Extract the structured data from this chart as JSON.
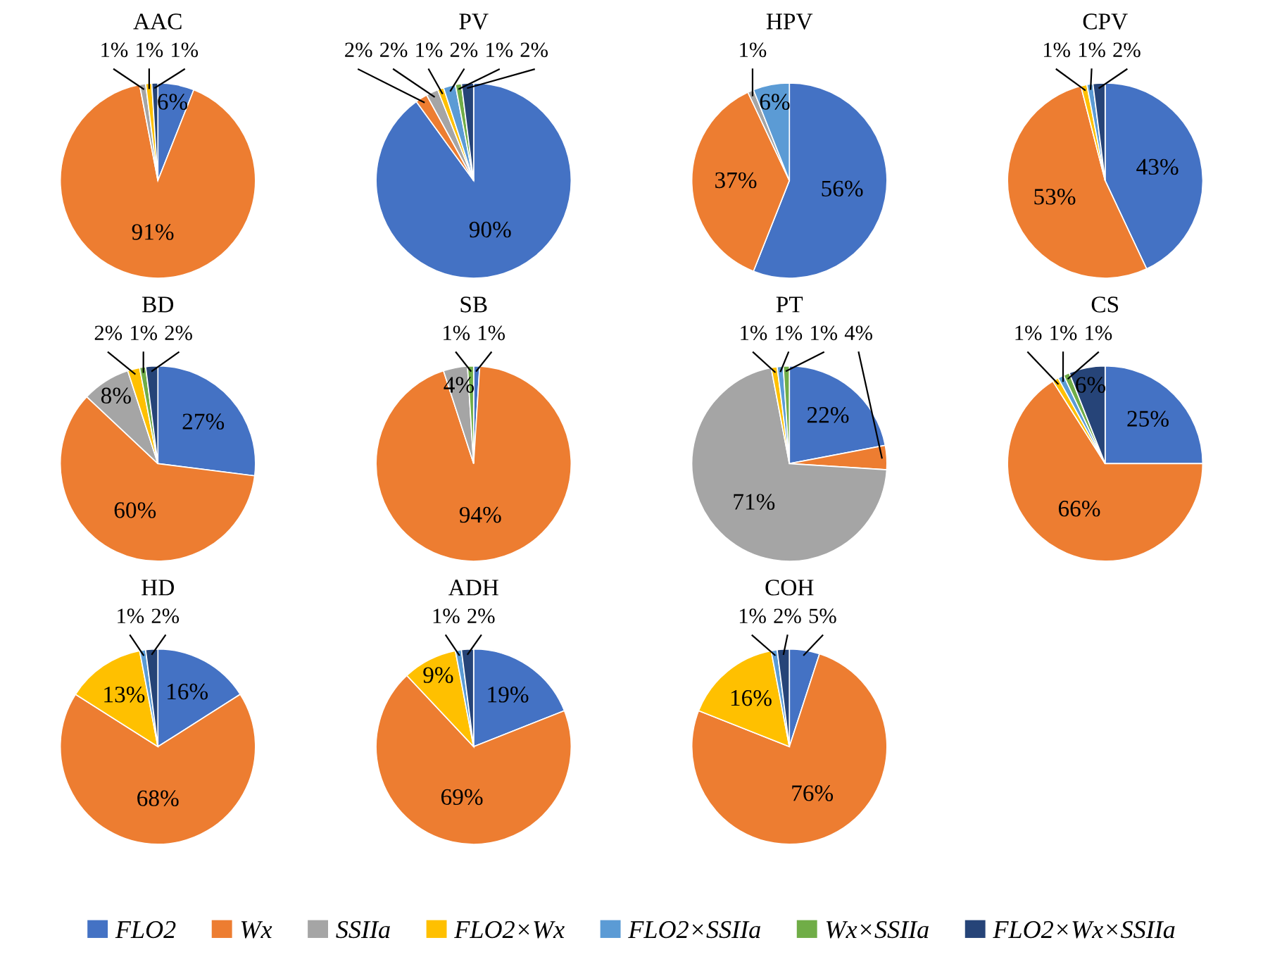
{
  "chart_data": [
    {
      "type": "pie",
      "title": "AAC",
      "legend": "bottom",
      "categories": [
        "FLO2",
        "Wx",
        "SSIIa",
        "FLO2×Wx",
        "FLO2×SSIIa",
        "Wx×SSIIa",
        "FLO2×Wx×SSIIa"
      ],
      "colors": [
        "#4472c4",
        "#ed7d31",
        "#a5a5a5",
        "#ffc000",
        "#5b9bd5",
        "#70ad47",
        "#264478"
      ],
      "values": [
        6,
        91,
        1,
        1,
        null,
        null,
        1
      ],
      "value_labels": [
        "6%",
        "91%",
        "1%",
        "1%",
        null,
        null,
        "1%"
      ]
    },
    {
      "type": "pie",
      "title": "PV",
      "colors": [
        "#4472c4",
        "#ed7d31",
        "#a5a5a5",
        "#ffc000",
        "#5b9bd5",
        "#70ad47",
        "#264478"
      ],
      "values": [
        90,
        2,
        2,
        1,
        2,
        1,
        2
      ],
      "value_labels": [
        "90%",
        "2%",
        "2%",
        "1%",
        "2%",
        "1%",
        "2%"
      ]
    },
    {
      "type": "pie",
      "title": "HPV",
      "colors": [
        "#4472c4",
        "#ed7d31",
        "#a5a5a5",
        "#ffc000",
        "#5b9bd5",
        "#70ad47",
        "#264478"
      ],
      "values": [
        56,
        37,
        1,
        null,
        6,
        null,
        null
      ],
      "value_labels": [
        "56%",
        "37%",
        "1%",
        null,
        "6%",
        null,
        null
      ]
    },
    {
      "type": "pie",
      "title": "CPV",
      "colors": [
        "#4472c4",
        "#ed7d31",
        "#a5a5a5",
        "#ffc000",
        "#5b9bd5",
        "#70ad47",
        "#264478"
      ],
      "values": [
        43,
        53,
        null,
        1,
        1,
        null,
        2
      ],
      "value_labels": [
        "43%",
        "53%",
        null,
        "1%",
        "1%",
        null,
        "2%"
      ]
    },
    {
      "type": "pie",
      "title": "BD",
      "colors": [
        "#4472c4",
        "#ed7d31",
        "#a5a5a5",
        "#ffc000",
        "#5b9bd5",
        "#70ad47",
        "#264478"
      ],
      "values": [
        27,
        60,
        8,
        2,
        null,
        1,
        2
      ],
      "value_labels": [
        "27%",
        "60%",
        "8%",
        "2%",
        null,
        "1%",
        "2%"
      ]
    },
    {
      "type": "pie",
      "title": "SB",
      "colors": [
        "#4472c4",
        "#ed7d31",
        "#a5a5a5",
        "#ffc000",
        "#5b9bd5",
        "#70ad47",
        "#264478"
      ],
      "values": [
        1,
        94,
        4,
        null,
        null,
        1,
        null
      ],
      "value_labels": [
        "1%",
        "94%",
        "4%",
        null,
        null,
        "1%",
        null
      ]
    },
    {
      "type": "pie",
      "title": "PT",
      "colors": [
        "#4472c4",
        "#ed7d31",
        "#a5a5a5",
        "#ffc000",
        "#5b9bd5",
        "#70ad47",
        "#264478"
      ],
      "values": [
        22,
        4,
        71,
        1,
        1,
        1,
        null
      ],
      "value_labels": [
        "22%",
        "4%",
        "71%",
        "1%",
        "1%",
        "1%",
        null
      ]
    },
    {
      "type": "pie",
      "title": "CS",
      "colors": [
        "#4472c4",
        "#ed7d31",
        "#a5a5a5",
        "#ffc000",
        "#5b9bd5",
        "#70ad47",
        "#264478"
      ],
      "values": [
        25,
        66,
        null,
        1,
        1,
        1,
        6
      ],
      "value_labels": [
        "25%",
        "66%",
        null,
        "1%",
        "1%",
        "1%",
        "6%"
      ]
    },
    {
      "type": "pie",
      "title": "HD",
      "colors": [
        "#4472c4",
        "#ed7d31",
        "#a5a5a5",
        "#ffc000",
        "#5b9bd5",
        "#70ad47",
        "#264478"
      ],
      "values": [
        16,
        68,
        null,
        13,
        1,
        null,
        2
      ],
      "value_labels": [
        "16%",
        "68%",
        null,
        "13%",
        "1%",
        null,
        "2%"
      ]
    },
    {
      "type": "pie",
      "title": "ADH",
      "colors": [
        "#4472c4",
        "#ed7d31",
        "#a5a5a5",
        "#ffc000",
        "#5b9bd5",
        "#70ad47",
        "#264478"
      ],
      "values": [
        19,
        69,
        null,
        9,
        1,
        null,
        2
      ],
      "value_labels": [
        "19%",
        "69%",
        null,
        "9%",
        "1%",
        null,
        "2%"
      ]
    },
    {
      "type": "pie",
      "title": "COH",
      "colors": [
        "#4472c4",
        "#ed7d31",
        "#a5a5a5",
        "#ffc000",
        "#5b9bd5",
        "#70ad47",
        "#264478"
      ],
      "values": [
        5,
        76,
        null,
        16,
        1,
        null,
        2
      ],
      "value_labels": [
        "5%",
        "76%",
        null,
        "16%",
        "1%",
        null,
        "2%"
      ]
    }
  ]
}
